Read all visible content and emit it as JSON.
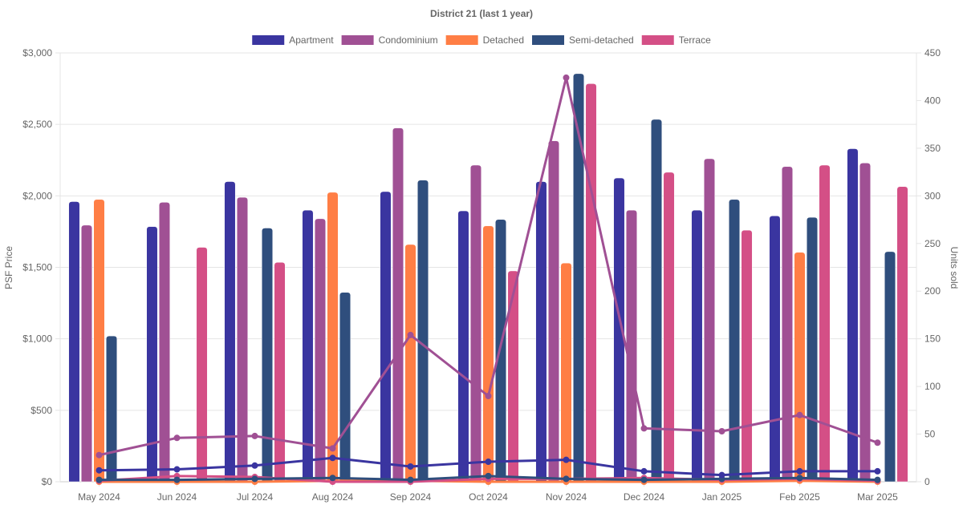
{
  "chart_data": {
    "type": "bar",
    "title": "District 21 (last 1 year)",
    "categories": [
      "May 2024",
      "Jun 2024",
      "Jul 2024",
      "Aug 2024",
      "Sep 2024",
      "Oct 2024",
      "Nov 2024",
      "Dec 2024",
      "Jan 2025",
      "Feb 2025",
      "Mar 2025"
    ],
    "y_left": {
      "label": "PSF Price",
      "range": [
        0,
        3000
      ],
      "ticks": [
        "$0",
        "$500",
        "$1,000",
        "$1,500",
        "$2,000",
        "$2,500",
        "$3,000"
      ],
      "tick_values": [
        0,
        500,
        1000,
        1500,
        2000,
        2500,
        3000
      ]
    },
    "y_right": {
      "label": "Units sold",
      "range": [
        0,
        450
      ],
      "ticks": [
        "0",
        "50",
        "100",
        "150",
        "200",
        "250",
        "300",
        "350",
        "400",
        "450"
      ],
      "tick_values": [
        0,
        50,
        100,
        150,
        200,
        250,
        300,
        350,
        400,
        450
      ]
    },
    "grid": true,
    "legend_position": "top",
    "series": [
      {
        "name": "Apartment",
        "color": "#3a35a0",
        "psf": [
          1960,
          1785,
          2100,
          1900,
          2030,
          1895,
          2100,
          2125,
          1900,
          1860,
          2330
        ],
        "units": [
          12,
          13,
          17,
          25,
          16,
          21,
          23,
          11,
          7,
          11,
          11
        ]
      },
      {
        "name": "Condominium",
        "color": "#a05094",
        "psf": [
          1795,
          1955,
          1990,
          1840,
          2475,
          2215,
          2385,
          1900,
          2260,
          2205,
          2230
        ],
        "units": [
          28,
          46,
          48,
          35,
          154,
          90,
          424,
          56,
          53,
          70,
          41
        ]
      },
      {
        "name": "Detached",
        "color": "#ff7e45",
        "psf": [
          1975,
          null,
          null,
          2025,
          1660,
          1790,
          1530,
          null,
          null,
          1605,
          null
        ],
        "units": [
          0,
          0,
          0,
          1,
          1,
          0,
          0,
          0,
          0,
          1,
          0
        ]
      },
      {
        "name": "Semi-detached",
        "color": "#2f4e7d",
        "psf": [
          1020,
          null,
          1775,
          1325,
          2110,
          1835,
          2855,
          2535,
          1975,
          1850,
          1610
        ],
        "units": [
          2,
          2,
          3,
          4,
          2,
          6,
          3,
          2,
          3,
          4,
          2
        ]
      },
      {
        "name": "Terrace",
        "color": "#d44f86",
        "psf": [
          null,
          1640,
          1535,
          null,
          null,
          1475,
          2785,
          2165,
          1760,
          2215,
          2065
        ],
        "units": [
          1,
          6,
          5,
          0,
          0,
          3,
          3,
          4,
          2,
          3,
          1
        ]
      }
    ]
  }
}
